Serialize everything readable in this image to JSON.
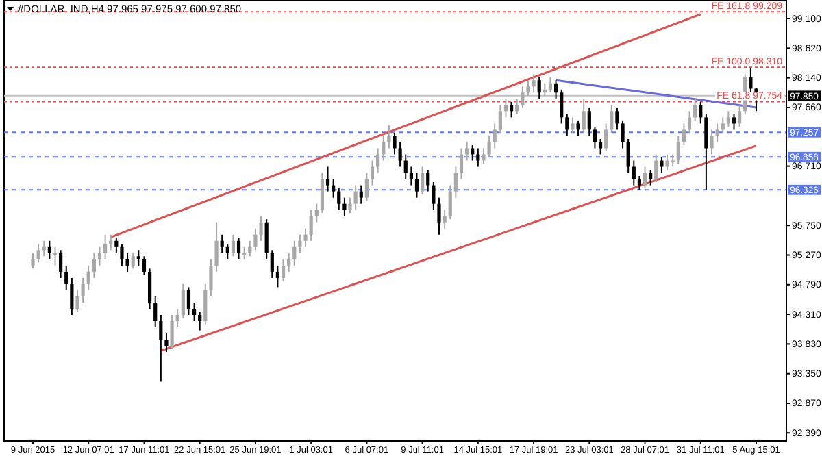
{
  "chart_data": {
    "type": "candlestick",
    "title": "#DOLLAR_IND,H4  97.965 97.975 97.600 97.850",
    "categories": [
      "9 Jun 2015",
      null,
      null,
      null,
      null,
      null,
      null,
      null,
      null,
      null,
      "12 Jun 07:01",
      null,
      null,
      null,
      null,
      null,
      null,
      null,
      null,
      null,
      "17 Jun 11:01",
      null,
      null,
      null,
      null,
      null,
      null,
      null,
      null,
      null,
      "22 Jun 15:01",
      null,
      null,
      null,
      null,
      null,
      null,
      null,
      null,
      null,
      "25 Jun 19:01",
      null,
      null,
      null,
      null,
      null,
      null,
      null,
      null,
      null,
      "1 Jul 03:01",
      null,
      null,
      null,
      null,
      null,
      null,
      null,
      null,
      null,
      "6 Jul 07:01",
      null,
      null,
      null,
      null,
      null,
      null,
      null,
      null,
      null,
      "9 Jul 11:01",
      null,
      null,
      null,
      null,
      null,
      null,
      null,
      null,
      null,
      "14 Jul 15:01",
      null,
      null,
      null,
      null,
      null,
      null,
      null,
      null,
      null,
      "17 Jul 19:01",
      null,
      null,
      null,
      null,
      null,
      null,
      null,
      null,
      null,
      "23 Jul 03:01",
      null,
      null,
      null,
      null,
      null,
      null,
      null,
      null,
      null,
      "28 Jul 07:01",
      null,
      null,
      null,
      null,
      null,
      null,
      null,
      null,
      null,
      "31 Jul 11:01",
      null,
      null,
      null,
      null,
      null,
      null,
      null,
      null,
      null,
      "5 Aug 15:01"
    ],
    "colors": [
      "#a8a8a8",
      "#a8a8a8",
      "#a8a8a8",
      "#000000",
      "#a8a8a8",
      "#000000",
      "#000000",
      "#000000",
      "#a8a8a8",
      "#a8a8a8",
      "#a8a8a8",
      "#a8a8a8",
      "#a8a8a8",
      "#a8a8a8",
      "#a8a8a8",
      "#000000",
      "#000000",
      "#000000",
      "#a8a8a8",
      "#000000",
      "#000000",
      "#000000",
      "#000000",
      "#000000",
      "#000000",
      "#a8a8a8",
      "#a8a8a8",
      "#a8a8a8",
      "#000000",
      "#000000",
      "#000000",
      "#a8a8a8",
      "#a8a8a8",
      "#a8a8a8",
      "#000000",
      "#000000",
      "#a8a8a8",
      "#000000",
      "#a8a8a8",
      "#a8a8a8",
      "#a8a8a8",
      "#a8a8a8",
      "#000000",
      "#000000",
      "#000000",
      "#a8a8a8",
      "#a8a8a8",
      "#a8a8a8",
      "#a8a8a8",
      "#a8a8a8",
      "#a8a8a8",
      "#a8a8a8",
      "#a8a8a8",
      "#000000",
      "#000000",
      "#000000",
      "#000000",
      "#a8a8a8",
      "#a8a8a8",
      "#000000",
      "#a8a8a8",
      "#a8a8a8",
      "#a8a8a8",
      "#a8a8a8",
      "#a8a8a8",
      "#000000",
      "#000000",
      "#000000",
      "#000000",
      "#000000",
      "#a8a8a8",
      "#000000",
      "#000000",
      "#000000",
      "#a8a8a8",
      "#a8a8a8",
      "#a8a8a8",
      "#a8a8a8",
      "#a8a8a8",
      "#000000",
      "#000000",
      "#a8a8a8",
      "#a8a8a8",
      "#a8a8a8",
      "#a8a8a8",
      "#a8a8a8",
      "#000000",
      "#a8a8a8",
      "#a8a8a8",
      "#a8a8a8",
      "#a8a8a8",
      "#000000",
      "#a8a8a8",
      "#a8a8a8",
      "#000000",
      "#000000",
      "#000000",
      "#a8a8a8",
      "#000000",
      "#a8a8a8",
      "#000000",
      "#000000",
      "#000000",
      "#a8a8a8",
      "#a8a8a8",
      "#000000",
      "#000000",
      "#000000",
      "#000000",
      "#000000",
      "#a8a8a8",
      "#000000",
      "#a8a8a8",
      "#000000",
      "#a8a8a8",
      "#a8a8a8",
      "#a8a8a8",
      "#a8a8a8",
      "#a8a8a8",
      "#a8a8a8",
      "#000000",
      "#000000",
      "#a8a8a8",
      "#a8a8a8",
      "#a8a8a8",
      "#a8a8a8",
      "#000000",
      "#a8a8a8",
      "#a8a8a8",
      "#000000",
      "#000000"
    ],
    "ohlc": [
      [
        95.1,
        95.3,
        95.05,
        95.2
      ],
      [
        95.2,
        95.45,
        95.15,
        95.35
      ],
      [
        95.35,
        95.5,
        95.25,
        95.4
      ],
      [
        95.4,
        95.5,
        95.2,
        95.3
      ],
      [
        95.3,
        95.4,
        95.1,
        95.3
      ],
      [
        95.3,
        95.35,
        94.9,
        95.0
      ],
      [
        95.0,
        95.1,
        94.7,
        94.8
      ],
      [
        94.8,
        94.9,
        94.3,
        94.4
      ],
      [
        94.4,
        94.7,
        94.35,
        94.6
      ],
      [
        94.6,
        94.9,
        94.5,
        94.8
      ],
      [
        94.8,
        95.1,
        94.7,
        95.0
      ],
      [
        95.0,
        95.3,
        94.9,
        95.2
      ],
      [
        95.2,
        95.4,
        95.1,
        95.3
      ],
      [
        95.3,
        95.6,
        95.2,
        95.45
      ],
      [
        95.45,
        95.6,
        95.35,
        95.5
      ],
      [
        95.5,
        95.55,
        95.3,
        95.4
      ],
      [
        95.4,
        95.45,
        95.1,
        95.2
      ],
      [
        95.2,
        95.3,
        95.0,
        95.1
      ],
      [
        95.1,
        95.3,
        95.05,
        95.25
      ],
      [
        95.25,
        95.35,
        95.1,
        95.2
      ],
      [
        95.2,
        95.25,
        94.95,
        95.0
      ],
      [
        95.0,
        95.05,
        94.4,
        94.5
      ],
      [
        94.5,
        94.6,
        94.1,
        94.2
      ],
      [
        94.2,
        94.3,
        93.22,
        93.9
      ],
      [
        93.9,
        94.0,
        93.7,
        93.8
      ],
      [
        93.8,
        94.3,
        93.75,
        94.2
      ],
      [
        94.2,
        94.4,
        94.1,
        94.3
      ],
      [
        94.3,
        94.8,
        94.25,
        94.7
      ],
      [
        94.7,
        94.75,
        94.3,
        94.4
      ],
      [
        94.4,
        94.5,
        94.2,
        94.3
      ],
      [
        94.3,
        94.35,
        94.05,
        94.2
      ],
      [
        94.2,
        94.8,
        94.15,
        94.7
      ],
      [
        94.7,
        95.2,
        94.6,
        95.1
      ],
      [
        95.1,
        95.8,
        95.0,
        95.5
      ],
      [
        95.5,
        95.6,
        95.3,
        95.4
      ],
      [
        95.4,
        95.45,
        95.2,
        95.3
      ],
      [
        95.3,
        95.6,
        95.25,
        95.5
      ],
      [
        95.5,
        95.55,
        95.2,
        95.3
      ],
      [
        95.3,
        95.4,
        95.2,
        95.3
      ],
      [
        95.3,
        95.5,
        95.25,
        95.4
      ],
      [
        95.4,
        95.7,
        95.35,
        95.6
      ],
      [
        95.6,
        95.9,
        95.5,
        95.8
      ],
      [
        95.8,
        95.85,
        95.2,
        95.3
      ],
      [
        95.3,
        95.35,
        94.9,
        95.0
      ],
      [
        95.0,
        95.1,
        94.75,
        94.9
      ],
      [
        94.9,
        95.2,
        94.85,
        95.1
      ],
      [
        95.1,
        95.3,
        95.0,
        95.2
      ],
      [
        95.2,
        95.5,
        95.1,
        95.4
      ],
      [
        95.4,
        95.6,
        95.3,
        95.5
      ],
      [
        95.5,
        95.7,
        95.4,
        95.6
      ],
      [
        95.6,
        96.0,
        95.5,
        95.9
      ],
      [
        95.9,
        96.1,
        95.8,
        96.0
      ],
      [
        96.0,
        96.6,
        95.95,
        96.5
      ],
      [
        96.5,
        96.7,
        96.3,
        96.4
      ],
      [
        96.4,
        96.5,
        96.2,
        96.3
      ],
      [
        96.3,
        96.35,
        96.0,
        96.1
      ],
      [
        96.1,
        96.2,
        95.9,
        96.0
      ],
      [
        96.0,
        96.2,
        95.95,
        96.1
      ],
      [
        96.1,
        96.4,
        96.0,
        96.3
      ],
      [
        96.3,
        96.4,
        96.1,
        96.2
      ],
      [
        96.2,
        96.6,
        96.15,
        96.5
      ],
      [
        96.5,
        96.8,
        96.4,
        96.7
      ],
      [
        96.7,
        97.0,
        96.6,
        96.9
      ],
      [
        96.9,
        97.2,
        96.8,
        97.1
      ],
      [
        97.1,
        97.37,
        97.0,
        97.2
      ],
      [
        97.2,
        97.25,
        96.9,
        97.0
      ],
      [
        97.0,
        97.1,
        96.7,
        96.8
      ],
      [
        96.8,
        96.9,
        96.5,
        96.6
      ],
      [
        96.6,
        96.7,
        96.4,
        96.5
      ],
      [
        96.5,
        96.6,
        96.2,
        96.3
      ],
      [
        96.3,
        96.7,
        96.25,
        96.6
      ],
      [
        96.6,
        96.65,
        96.3,
        96.4
      ],
      [
        96.4,
        96.45,
        96.0,
        96.1
      ],
      [
        96.1,
        96.2,
        95.6,
        95.8
      ],
      [
        95.8,
        96.0,
        95.7,
        95.9
      ],
      [
        95.9,
        96.4,
        95.85,
        96.3
      ],
      [
        96.3,
        96.7,
        96.2,
        96.6
      ],
      [
        96.6,
        97.0,
        96.5,
        96.9
      ],
      [
        96.9,
        97.1,
        96.8,
        97.0
      ],
      [
        97.0,
        97.05,
        96.8,
        96.9
      ],
      [
        96.9,
        97.0,
        96.7,
        96.8
      ],
      [
        96.8,
        97.0,
        96.75,
        96.9
      ],
      [
        96.9,
        97.2,
        96.85,
        97.1
      ],
      [
        97.1,
        97.4,
        97.0,
        97.3
      ],
      [
        97.3,
        97.7,
        97.25,
        97.6
      ],
      [
        97.6,
        97.8,
        97.5,
        97.7
      ],
      [
        97.7,
        97.75,
        97.5,
        97.6
      ],
      [
        97.6,
        97.8,
        97.55,
        97.7
      ],
      [
        97.7,
        98.0,
        97.65,
        97.9
      ],
      [
        97.9,
        98.1,
        97.85,
        98.0
      ],
      [
        98.0,
        98.2,
        97.9,
        98.1
      ],
      [
        98.1,
        98.15,
        97.8,
        97.9
      ],
      [
        97.9,
        98.05,
        97.85,
        97.95
      ],
      [
        97.95,
        98.15,
        97.9,
        98.05
      ],
      [
        98.05,
        98.1,
        97.8,
        97.9
      ],
      [
        97.9,
        97.95,
        97.4,
        97.5
      ],
      [
        97.5,
        97.55,
        97.2,
        97.3
      ],
      [
        97.3,
        97.5,
        97.25,
        97.4
      ],
      [
        97.4,
        97.45,
        97.2,
        97.3
      ],
      [
        97.3,
        97.8,
        97.25,
        97.6
      ],
      [
        97.6,
        97.65,
        97.2,
        97.3
      ],
      [
        97.3,
        97.35,
        97.0,
        97.1
      ],
      [
        97.1,
        97.15,
        96.9,
        97.0
      ],
      [
        97.0,
        97.4,
        96.95,
        97.3
      ],
      [
        97.3,
        97.7,
        97.25,
        97.6
      ],
      [
        97.6,
        97.65,
        97.3,
        97.4
      ],
      [
        97.4,
        97.45,
        97.0,
        97.1
      ],
      [
        97.1,
        97.15,
        96.6,
        96.7
      ],
      [
        96.7,
        96.8,
        96.4,
        96.5
      ],
      [
        96.5,
        96.55,
        96.33,
        96.4
      ],
      [
        96.4,
        96.7,
        96.35,
        96.6
      ],
      [
        96.6,
        96.65,
        96.4,
        96.5
      ],
      [
        96.5,
        96.9,
        96.45,
        96.8
      ],
      [
        96.8,
        96.85,
        96.6,
        96.7
      ],
      [
        96.7,
        96.9,
        96.65,
        96.8
      ],
      [
        96.8,
        96.9,
        96.7,
        96.8
      ],
      [
        96.8,
        97.2,
        96.75,
        97.1
      ],
      [
        97.1,
        97.4,
        97.05,
        97.3
      ],
      [
        97.3,
        97.6,
        97.25,
        97.5
      ],
      [
        97.5,
        97.8,
        97.45,
        97.7
      ],
      [
        97.7,
        97.75,
        97.4,
        97.5
      ],
      [
        97.5,
        97.55,
        96.32,
        97.0
      ],
      [
        97.0,
        97.3,
        96.9,
        97.2
      ],
      [
        97.2,
        97.4,
        97.1,
        97.3
      ],
      [
        97.3,
        97.5,
        97.25,
        97.4
      ],
      [
        97.4,
        97.6,
        97.35,
        97.5
      ],
      [
        97.5,
        97.55,
        97.3,
        97.4
      ],
      [
        97.4,
        97.7,
        97.35,
        97.6
      ],
      [
        97.6,
        98.2,
        97.55,
        98.15
      ],
      [
        98.15,
        98.3,
        97.9,
        97.965
      ],
      [
        97.965,
        97.975,
        97.6,
        97.85
      ]
    ],
    "series": [
      {
        "type": "line",
        "color": "#e05050",
        "values": [
          null,
          null,
          null,
          null,
          null,
          null,
          null,
          null,
          null,
          null,
          null,
          null,
          null,
          null,
          95.56,
          null,
          null,
          null,
          null,
          null,
          null,
          null,
          null,
          null,
          null,
          null,
          null,
          null,
          null,
          null,
          null,
          null,
          null,
          null,
          null,
          null,
          null,
          null,
          null,
          null,
          null,
          null,
          null,
          null,
          null,
          null,
          null,
          null,
          null,
          null,
          null,
          null,
          null,
          null,
          null,
          null,
          null,
          null,
          null,
          null,
          null,
          null,
          null,
          null,
          null,
          null,
          null,
          null,
          null,
          null,
          null,
          null,
          null,
          null,
          null,
          null,
          null,
          null,
          null,
          null,
          null,
          null,
          null,
          null,
          null,
          null,
          null,
          null,
          null,
          null,
          null,
          null,
          null,
          null,
          null,
          null,
          null,
          null,
          null,
          null,
          null,
          null,
          null,
          null,
          null,
          null,
          null,
          null,
          null,
          null,
          null,
          null,
          null,
          null,
          null,
          null,
          null,
          null,
          null,
          null,
          99.17,
          null,
          null,
          null,
          null,
          null,
          null,
          null,
          null,
          null,
          null
        ]
      },
      {
        "type": "line",
        "color": "#e05050",
        "values": [
          null,
          null,
          null,
          null,
          null,
          null,
          null,
          null,
          null,
          null,
          null,
          null,
          null,
          null,
          null,
          null,
          null,
          null,
          null,
          null,
          null,
          null,
          null,
          93.72,
          null,
          null,
          null,
          null,
          null,
          null,
          null,
          null,
          null,
          null,
          null,
          null,
          null,
          null,
          null,
          null,
          null,
          null,
          null,
          null,
          null,
          null,
          null,
          null,
          null,
          null,
          null,
          null,
          null,
          null,
          null,
          null,
          null,
          null,
          null,
          null,
          null,
          null,
          null,
          null,
          null,
          null,
          null,
          null,
          null,
          null,
          null,
          null,
          null,
          null,
          null,
          null,
          null,
          null,
          null,
          null,
          null,
          null,
          null,
          null,
          null,
          null,
          null,
          null,
          null,
          null,
          null,
          null,
          null,
          null,
          null,
          null,
          null,
          null,
          null,
          null,
          null,
          null,
          null,
          null,
          null,
          null,
          null,
          null,
          null,
          null,
          null,
          null,
          null,
          null,
          null,
          null,
          null,
          null,
          null,
          null,
          null,
          null,
          null,
          null,
          null,
          null,
          null,
          null,
          null,
          null,
          97.04
        ]
      },
      {
        "type": "line",
        "color": "#6a6ae0",
        "values": [
          null,
          null,
          null,
          null,
          null,
          null,
          null,
          null,
          null,
          null,
          null,
          null,
          null,
          null,
          null,
          null,
          null,
          null,
          null,
          null,
          null,
          null,
          null,
          null,
          null,
          null,
          null,
          null,
          null,
          null,
          null,
          null,
          null,
          null,
          null,
          null,
          null,
          null,
          null,
          null,
          null,
          null,
          null,
          null,
          null,
          null,
          null,
          null,
          null,
          null,
          null,
          null,
          null,
          null,
          null,
          null,
          null,
          null,
          null,
          null,
          null,
          null,
          null,
          null,
          null,
          null,
          null,
          null,
          null,
          null,
          null,
          null,
          null,
          null,
          null,
          null,
          null,
          null,
          null,
          null,
          null,
          null,
          null,
          null,
          null,
          null,
          null,
          null,
          null,
          null,
          null,
          null,
          null,
          null,
          98.1,
          null,
          null,
          null,
          null,
          null,
          null,
          null,
          null,
          null,
          null,
          null,
          null,
          null,
          null,
          null,
          null,
          null,
          null,
          null,
          null,
          null,
          null,
          null,
          null,
          null,
          null,
          null,
          null,
          null,
          null,
          null,
          null,
          null,
          null,
          null,
          97.66
        ]
      }
    ],
    "ylim": [
      92.26,
      99.4
    ],
    "yticks": [
      {
        "value": 92.39,
        "label": "92.390"
      },
      {
        "value": 92.87,
        "label": "92.870"
      },
      {
        "value": 93.35,
        "label": "93.350"
      },
      {
        "value": 93.83,
        "label": "93.830"
      },
      {
        "value": 94.31,
        "label": "94.310"
      },
      {
        "value": 94.79,
        "label": "94.790"
      },
      {
        "value": 95.27,
        "label": "95.270"
      },
      {
        "value": 95.75,
        "label": "95.750"
      },
      {
        "value": 96.71,
        "label": "96.710"
      },
      {
        "value": 97.66,
        "label": "97.660"
      },
      {
        "value": 98.14,
        "label": "98.140"
      },
      {
        "value": 98.62,
        "label": "98.620"
      },
      {
        "value": 99.1,
        "label": "99.100"
      }
    ],
    "ref_lines": [
      {
        "axis": "y",
        "value": 97.257,
        "label": "97.257",
        "color": "#5a78f0",
        "line_style": "dashed"
      },
      {
        "axis": "y",
        "value": 96.858,
        "label": "96.858",
        "color": "#5a78f0",
        "line_style": "dashed"
      },
      {
        "axis": "y",
        "value": 96.326,
        "label": "96.326",
        "color": "#5a78f0",
        "line_style": "dashed"
      },
      {
        "axis": "y",
        "value": 97.85,
        "label": "97.850",
        "color": "#c0c0c0",
        "line_style": "solid"
      },
      {
        "axis": "y",
        "value": 99.209,
        "label": "FE 161.8 99.209",
        "color": "#ff4040",
        "line_style": "dotted"
      },
      {
        "axis": "y",
        "value": 98.31,
        "label": "FE 100.0 98.310",
        "color": "#ff4040",
        "line_style": "dotted"
      },
      {
        "axis": "y",
        "value": 97.754,
        "label": "FE 61.8 97.754",
        "color": "#ff4040",
        "line_style": "dotted"
      }
    ],
    "grid": false
  }
}
